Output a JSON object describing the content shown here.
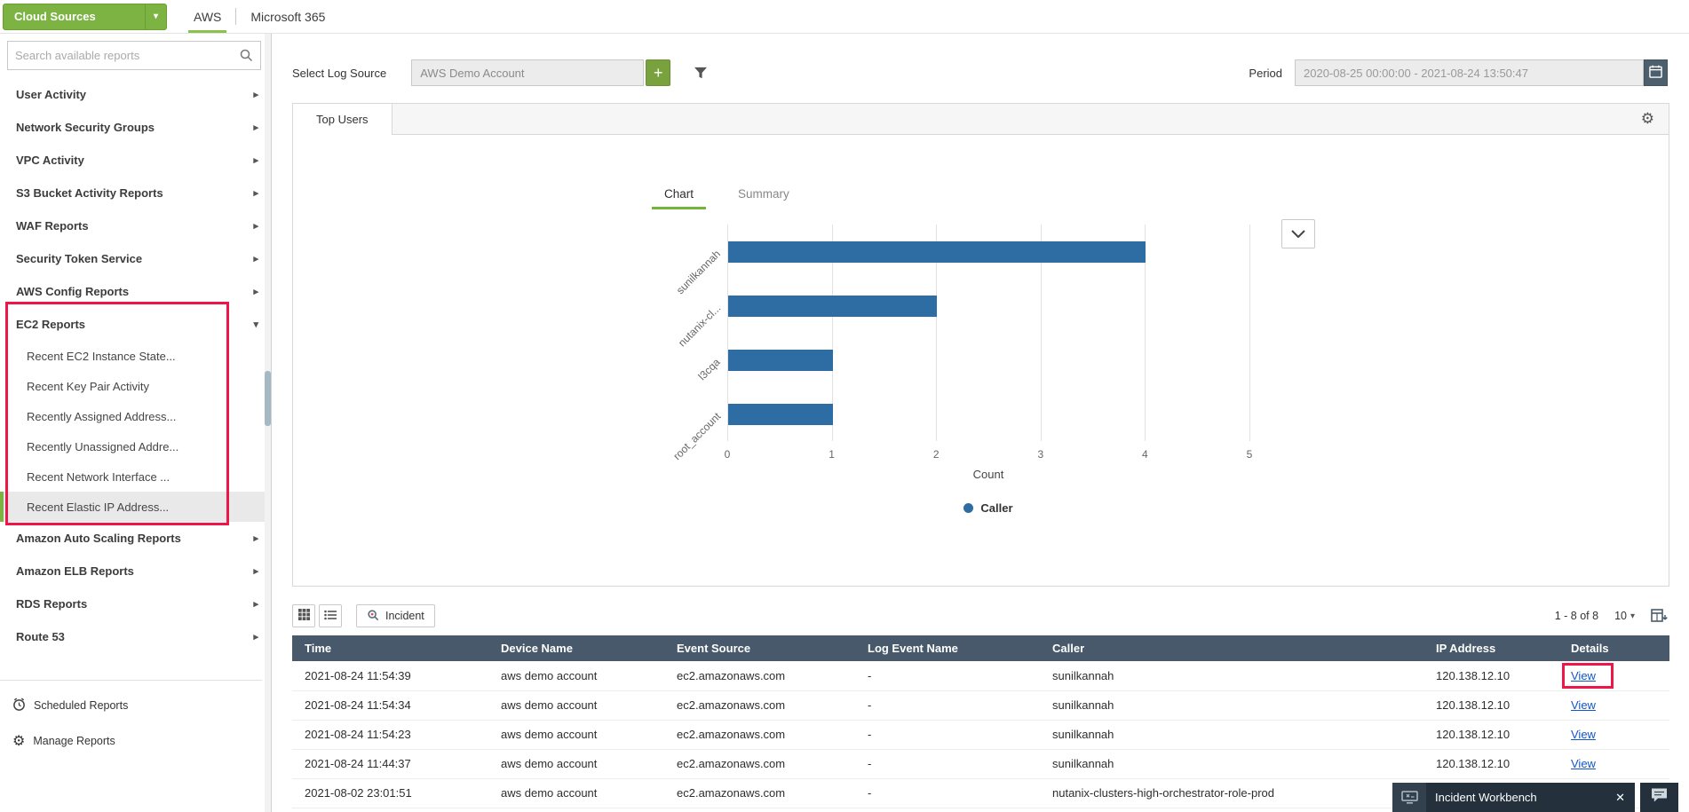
{
  "topbar": {
    "cloud_sources": "Cloud Sources",
    "tabs": [
      {
        "label": "AWS",
        "active": true
      },
      {
        "label": "Microsoft 365",
        "active": false
      }
    ]
  },
  "sidebar": {
    "search_placeholder": "Search available reports",
    "groups": [
      "User Activity",
      "Network Security Groups",
      "VPC Activity",
      "S3 Bucket Activity Reports",
      "WAF Reports",
      "Security Token Service",
      "AWS Config Reports"
    ],
    "ec2": {
      "label": "EC2 Reports",
      "children": [
        "Recent EC2 Instance State...",
        "Recent Key Pair Activity",
        "Recently Assigned Address...",
        "Recently Unassigned Addre...",
        "Recent Network Interface ...",
        "Recent Elastic IP Address..."
      ],
      "selected_child": "Recent Elastic IP Address..."
    },
    "groups_after": [
      "Amazon Auto Scaling Reports",
      "Amazon ELB Reports",
      "RDS Reports",
      "Route 53"
    ],
    "footer": [
      "Scheduled Reports",
      "Manage Reports"
    ]
  },
  "filters": {
    "select_log_source_label": "Select Log Source",
    "log_source_value": "AWS Demo Account",
    "period_label": "Period",
    "period_value": "2020-08-25 00:00:00 - 2021-08-24 13:50:47"
  },
  "report_panel": {
    "tab": "Top Users",
    "view_tabs": [
      {
        "label": "Chart",
        "active": true
      },
      {
        "label": "Summary",
        "active": false
      }
    ]
  },
  "chart_data": {
    "type": "bar",
    "orientation": "horizontal",
    "categories": [
      "sunilkannah",
      "nutanix-cl...",
      "l3cqa",
      "root_account"
    ],
    "values": [
      4,
      2,
      1,
      1
    ],
    "xlabel": "Count",
    "xlim": [
      0,
      5
    ],
    "x_ticks": [
      0,
      1,
      2,
      3,
      4,
      5
    ],
    "bar_color": "#2e6da4",
    "grid": true,
    "legend": [
      {
        "label": "Caller",
        "color": "#2e6da4"
      }
    ],
    "legend_position": "bottom"
  },
  "table": {
    "toolbar": {
      "incident_label": "Incident",
      "range_text": "1 - 8 of 8",
      "page_size": "10"
    },
    "columns": [
      "Time",
      "Device Name",
      "Event Source",
      "Log Event Name",
      "Caller",
      "IP Address",
      "Details"
    ],
    "rows": [
      {
        "time": "2021-08-24 11:54:39",
        "device": "aws demo account",
        "source": "ec2.amazonaws.com",
        "log_event": "-",
        "caller": "sunilkannah",
        "ip": "120.138.12.10",
        "details": "View"
      },
      {
        "time": "2021-08-24 11:54:34",
        "device": "aws demo account",
        "source": "ec2.amazonaws.com",
        "log_event": "-",
        "caller": "sunilkannah",
        "ip": "120.138.12.10",
        "details": "View"
      },
      {
        "time": "2021-08-24 11:54:23",
        "device": "aws demo account",
        "source": "ec2.amazonaws.com",
        "log_event": "-",
        "caller": "sunilkannah",
        "ip": "120.138.12.10",
        "details": "View"
      },
      {
        "time": "2021-08-24 11:44:37",
        "device": "aws demo account",
        "source": "ec2.amazonaws.com",
        "log_event": "-",
        "caller": "sunilkannah",
        "ip": "120.138.12.10",
        "details": "View"
      },
      {
        "time": "2021-08-02 23:01:51",
        "device": "aws demo account",
        "source": "ec2.amazonaws.com",
        "log_event": "-",
        "caller": "nutanix-clusters-high-orchestrator-role-prod",
        "ip": "",
        "details": ""
      }
    ]
  },
  "workbench": {
    "label": "Incident Workbench"
  },
  "colors": {
    "accent_green": "#7cb342",
    "bar_blue": "#2e6da4",
    "header_slate": "#47596a",
    "annotation_red": "#ee1648"
  }
}
